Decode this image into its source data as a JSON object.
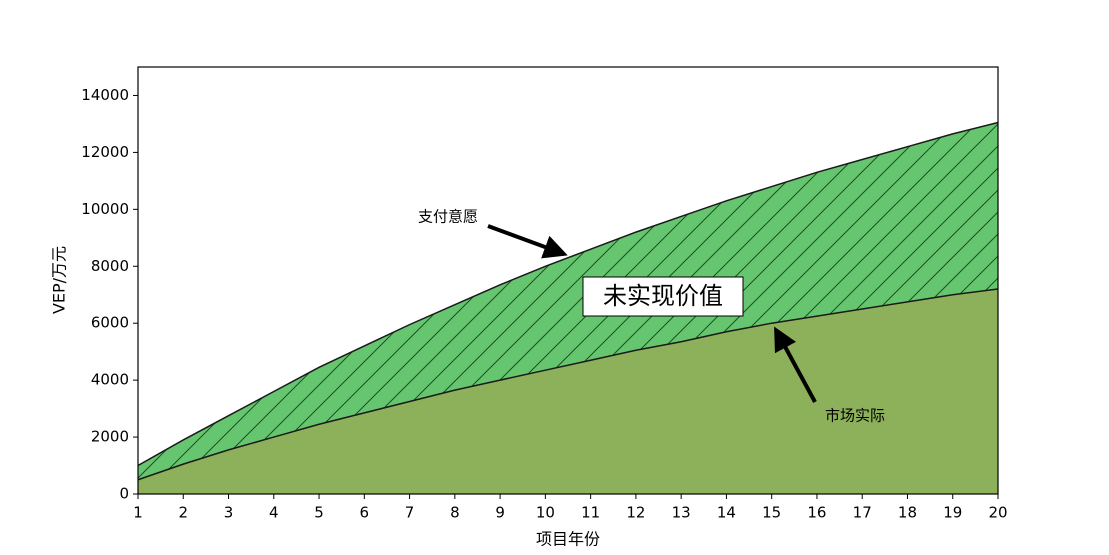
{
  "chart_data": {
    "type": "area",
    "x": [
      1,
      2,
      3,
      4,
      5,
      6,
      7,
      8,
      9,
      10,
      11,
      12,
      13,
      14,
      15,
      16,
      17,
      18,
      19,
      20
    ],
    "series": [
      {
        "name": "市场实际",
        "color": "#8db05a",
        "values": [
          500,
          1050,
          1550,
          2000,
          2450,
          2850,
          3250,
          3650,
          4000,
          4350,
          4700,
          5050,
          5350,
          5700,
          6000,
          6250,
          6500,
          6750,
          7000,
          7200
        ]
      },
      {
        "name": "支付意愿",
        "color": "#66c56f",
        "values": [
          1000,
          1900,
          2750,
          3600,
          4450,
          5200,
          5950,
          6650,
          7350,
          8000,
          8600,
          9200,
          9750,
          10300,
          10800,
          11300,
          11750,
          12200,
          12650,
          13050
        ]
      }
    ],
    "band_label": "未实现价值",
    "xlabel": "项目年份",
    "ylabel": "VEP/万元",
    "xlim": [
      1,
      20
    ],
    "xticks": [
      1,
      2,
      3,
      4,
      5,
      6,
      7,
      8,
      9,
      10,
      11,
      12,
      13,
      14,
      15,
      16,
      17,
      18,
      19,
      20
    ],
    "ylim": [
      0,
      15000
    ],
    "yticks": [
      0,
      2000,
      4000,
      6000,
      8000,
      10000,
      12000,
      14000
    ]
  }
}
